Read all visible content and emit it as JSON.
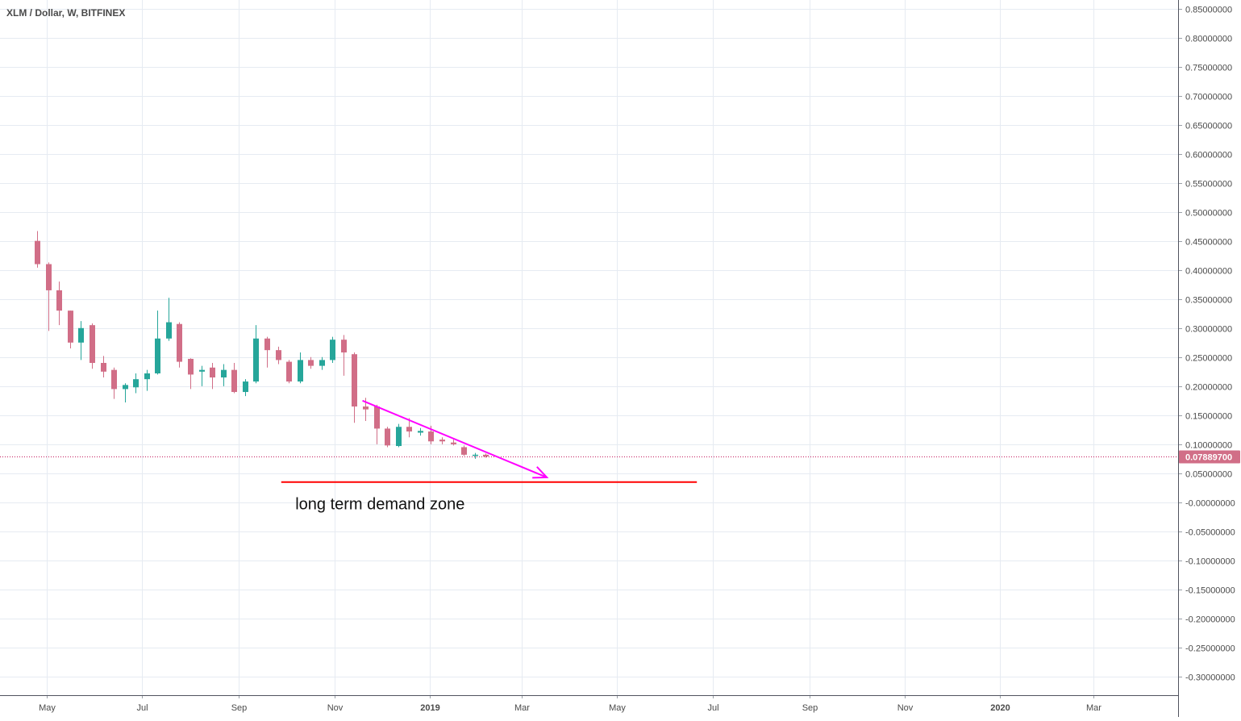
{
  "header": {
    "symbol_title": "XLM / Dollar, W, BITFINEX"
  },
  "colors": {
    "up": "#26a69a",
    "down": "#d16e87",
    "grid": "#e6ebf2",
    "axis_text": "#4a4a4a",
    "price_line": "#c2185b",
    "price_badge": "#d16e87",
    "trend_arrow": "#ff00ff",
    "demand_line": "#ff0000"
  },
  "chart_data": {
    "type": "candlestick",
    "y_axis": {
      "ylim": [
        -0.35,
        0.86
      ],
      "ticks": [
        0.85,
        0.8,
        0.75,
        0.7,
        0.65,
        0.6,
        0.55,
        0.5,
        0.45,
        0.4,
        0.35,
        0.3,
        0.25,
        0.2,
        0.15,
        0.1,
        0.05,
        -0.0,
        -0.05,
        -0.1,
        -0.15,
        -0.2,
        -0.25,
        -0.3
      ],
      "tick_labels": [
        "0.85000000",
        "0.80000000",
        "0.75000000",
        "0.70000000",
        "0.65000000",
        "0.60000000",
        "0.55000000",
        "0.50000000",
        "0.45000000",
        "0.40000000",
        "0.35000000",
        "0.30000000",
        "0.25000000",
        "0.20000000",
        "0.15000000",
        "0.10000000",
        "0.05000000",
        "-0.00000000",
        "-0.05000000",
        "-0.10000000",
        "-0.15000000",
        "-0.20000000",
        "-0.25000000",
        "-0.30000000"
      ]
    },
    "x_axis": {
      "xlim": [
        "2018-04-01",
        "2020-04-24"
      ],
      "ticks": [
        {
          "date": "2018-05-01",
          "label": "May",
          "bold": false
        },
        {
          "date": "2018-07-01",
          "label": "Jul",
          "bold": false
        },
        {
          "date": "2018-09-01",
          "label": "Sep",
          "bold": false
        },
        {
          "date": "2018-11-01",
          "label": "Nov",
          "bold": false
        },
        {
          "date": "2019-01-01",
          "label": "2019",
          "bold": true
        },
        {
          "date": "2019-03-01",
          "label": "Mar",
          "bold": false
        },
        {
          "date": "2019-05-01",
          "label": "May",
          "bold": false
        },
        {
          "date": "2019-07-01",
          "label": "Jul",
          "bold": false
        },
        {
          "date": "2019-09-01",
          "label": "Sep",
          "bold": false
        },
        {
          "date": "2019-11-01",
          "label": "Nov",
          "bold": false
        },
        {
          "date": "2020-01-01",
          "label": "2020",
          "bold": true
        },
        {
          "date": "2020-03-01",
          "label": "Mar",
          "bold": false
        }
      ]
    },
    "candles": [
      {
        "date": "2018-04-23",
        "o": 0.45,
        "h": 0.467,
        "l": 0.404,
        "c": 0.41
      },
      {
        "date": "2018-04-30",
        "o": 0.41,
        "h": 0.413,
        "l": 0.295,
        "c": 0.365
      },
      {
        "date": "2018-05-07",
        "o": 0.365,
        "h": 0.38,
        "l": 0.305,
        "c": 0.33
      },
      {
        "date": "2018-05-14",
        "o": 0.33,
        "h": 0.33,
        "l": 0.265,
        "c": 0.275
      },
      {
        "date": "2018-05-21",
        "o": 0.275,
        "h": 0.312,
        "l": 0.245,
        "c": 0.3
      },
      {
        "date": "2018-05-28",
        "o": 0.305,
        "h": 0.308,
        "l": 0.23,
        "c": 0.24
      },
      {
        "date": "2018-06-04",
        "o": 0.24,
        "h": 0.252,
        "l": 0.215,
        "c": 0.225
      },
      {
        "date": "2018-06-11",
        "o": 0.228,
        "h": 0.232,
        "l": 0.178,
        "c": 0.195
      },
      {
        "date": "2018-06-18",
        "o": 0.195,
        "h": 0.205,
        "l": 0.172,
        "c": 0.202
      },
      {
        "date": "2018-06-25",
        "o": 0.198,
        "h": 0.222,
        "l": 0.188,
        "c": 0.212
      },
      {
        "date": "2018-07-02",
        "o": 0.212,
        "h": 0.228,
        "l": 0.192,
        "c": 0.222
      },
      {
        "date": "2018-07-09",
        "o": 0.222,
        "h": 0.33,
        "l": 0.22,
        "c": 0.282
      },
      {
        "date": "2018-07-16",
        "o": 0.282,
        "h": 0.352,
        "l": 0.278,
        "c": 0.31
      },
      {
        "date": "2018-07-23",
        "o": 0.307,
        "h": 0.31,
        "l": 0.232,
        "c": 0.242
      },
      {
        "date": "2018-07-30",
        "o": 0.247,
        "h": 0.248,
        "l": 0.195,
        "c": 0.22
      },
      {
        "date": "2018-08-06",
        "o": 0.225,
        "h": 0.235,
        "l": 0.2,
        "c": 0.228
      },
      {
        "date": "2018-08-13",
        "o": 0.232,
        "h": 0.24,
        "l": 0.195,
        "c": 0.215
      },
      {
        "date": "2018-08-20",
        "o": 0.215,
        "h": 0.238,
        "l": 0.2,
        "c": 0.228
      },
      {
        "date": "2018-08-27",
        "o": 0.228,
        "h": 0.24,
        "l": 0.188,
        "c": 0.19
      },
      {
        "date": "2018-09-03",
        "o": 0.19,
        "h": 0.212,
        "l": 0.183,
        "c": 0.208
      },
      {
        "date": "2018-09-10",
        "o": 0.208,
        "h": 0.305,
        "l": 0.205,
        "c": 0.282
      },
      {
        "date": "2018-09-17",
        "o": 0.282,
        "h": 0.285,
        "l": 0.232,
        "c": 0.262
      },
      {
        "date": "2018-09-24",
        "o": 0.262,
        "h": 0.268,
        "l": 0.238,
        "c": 0.245
      },
      {
        "date": "2018-10-01",
        "o": 0.242,
        "h": 0.245,
        "l": 0.205,
        "c": 0.208
      },
      {
        "date": "2018-10-08",
        "o": 0.208,
        "h": 0.258,
        "l": 0.205,
        "c": 0.245
      },
      {
        "date": "2018-10-15",
        "o": 0.245,
        "h": 0.25,
        "l": 0.23,
        "c": 0.235
      },
      {
        "date": "2018-10-22",
        "o": 0.235,
        "h": 0.25,
        "l": 0.228,
        "c": 0.245
      },
      {
        "date": "2018-10-29",
        "o": 0.245,
        "h": 0.285,
        "l": 0.24,
        "c": 0.28
      },
      {
        "date": "2018-11-05",
        "o": 0.28,
        "h": 0.288,
        "l": 0.218,
        "c": 0.258
      },
      {
        "date": "2018-11-12",
        "o": 0.255,
        "h": 0.258,
        "l": 0.137,
        "c": 0.165
      },
      {
        "date": "2018-11-19",
        "o": 0.165,
        "h": 0.18,
        "l": 0.14,
        "c": 0.16
      },
      {
        "date": "2018-11-26",
        "o": 0.165,
        "h": 0.168,
        "l": 0.1,
        "c": 0.127
      },
      {
        "date": "2018-12-03",
        "o": 0.127,
        "h": 0.13,
        "l": 0.095,
        "c": 0.098
      },
      {
        "date": "2018-12-10",
        "o": 0.097,
        "h": 0.135,
        "l": 0.095,
        "c": 0.13
      },
      {
        "date": "2018-12-17",
        "o": 0.13,
        "h": 0.145,
        "l": 0.112,
        "c": 0.122
      },
      {
        "date": "2018-12-24",
        "o": 0.12,
        "h": 0.128,
        "l": 0.115,
        "c": 0.123
      },
      {
        "date": "2018-12-31",
        "o": 0.122,
        "h": 0.132,
        "l": 0.1,
        "c": 0.105
      },
      {
        "date": "2019-01-07",
        "o": 0.108,
        "h": 0.112,
        "l": 0.1,
        "c": 0.105
      },
      {
        "date": "2019-01-14",
        "o": 0.103,
        "h": 0.108,
        "l": 0.098,
        "c": 0.1
      },
      {
        "date": "2019-01-21",
        "o": 0.095,
        "h": 0.098,
        "l": 0.08,
        "c": 0.082
      },
      {
        "date": "2019-01-28",
        "o": 0.08,
        "h": 0.085,
        "l": 0.075,
        "c": 0.082
      },
      {
        "date": "2019-02-04",
        "o": 0.082,
        "h": 0.084,
        "l": 0.077,
        "c": 0.079
      }
    ],
    "last_price": {
      "value": 0.078897,
      "label": "0.07889700"
    },
    "annotations": [
      {
        "type": "arrow",
        "from": {
          "date": "2018-11-19",
          "value": 0.175
        },
        "to": {
          "date": "2019-03-17",
          "value": 0.043
        }
      },
      {
        "type": "hline",
        "from_date": "2018-09-28",
        "to_date": "2019-06-21",
        "value": 0.035
      },
      {
        "type": "text",
        "text": "long term demand zone",
        "date": "2018-10-07",
        "value": -0.002
      }
    ]
  }
}
